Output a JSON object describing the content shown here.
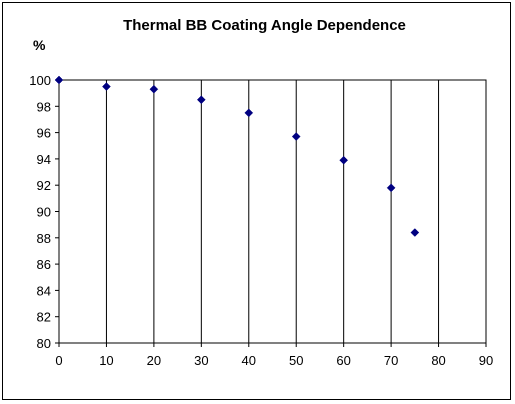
{
  "chart_data": {
    "type": "scatter",
    "title": "Thermal BB Coating Angle Dependence",
    "ylabel": "%",
    "xlabel": "",
    "xlim": [
      0,
      90
    ],
    "ylim": [
      80,
      100
    ],
    "xticks": [
      0,
      10,
      20,
      30,
      40,
      50,
      60,
      70,
      80,
      90
    ],
    "yticks": [
      80,
      82,
      84,
      86,
      88,
      90,
      92,
      94,
      96,
      98,
      100
    ],
    "grid": "vertical",
    "marker": "diamond",
    "marker_color": "#000080",
    "x": [
      0,
      10,
      20,
      30,
      40,
      50,
      60,
      70,
      75
    ],
    "y": [
      100,
      99.5,
      99.3,
      98.5,
      97.5,
      95.7,
      93.9,
      91.8,
      88.4
    ]
  }
}
